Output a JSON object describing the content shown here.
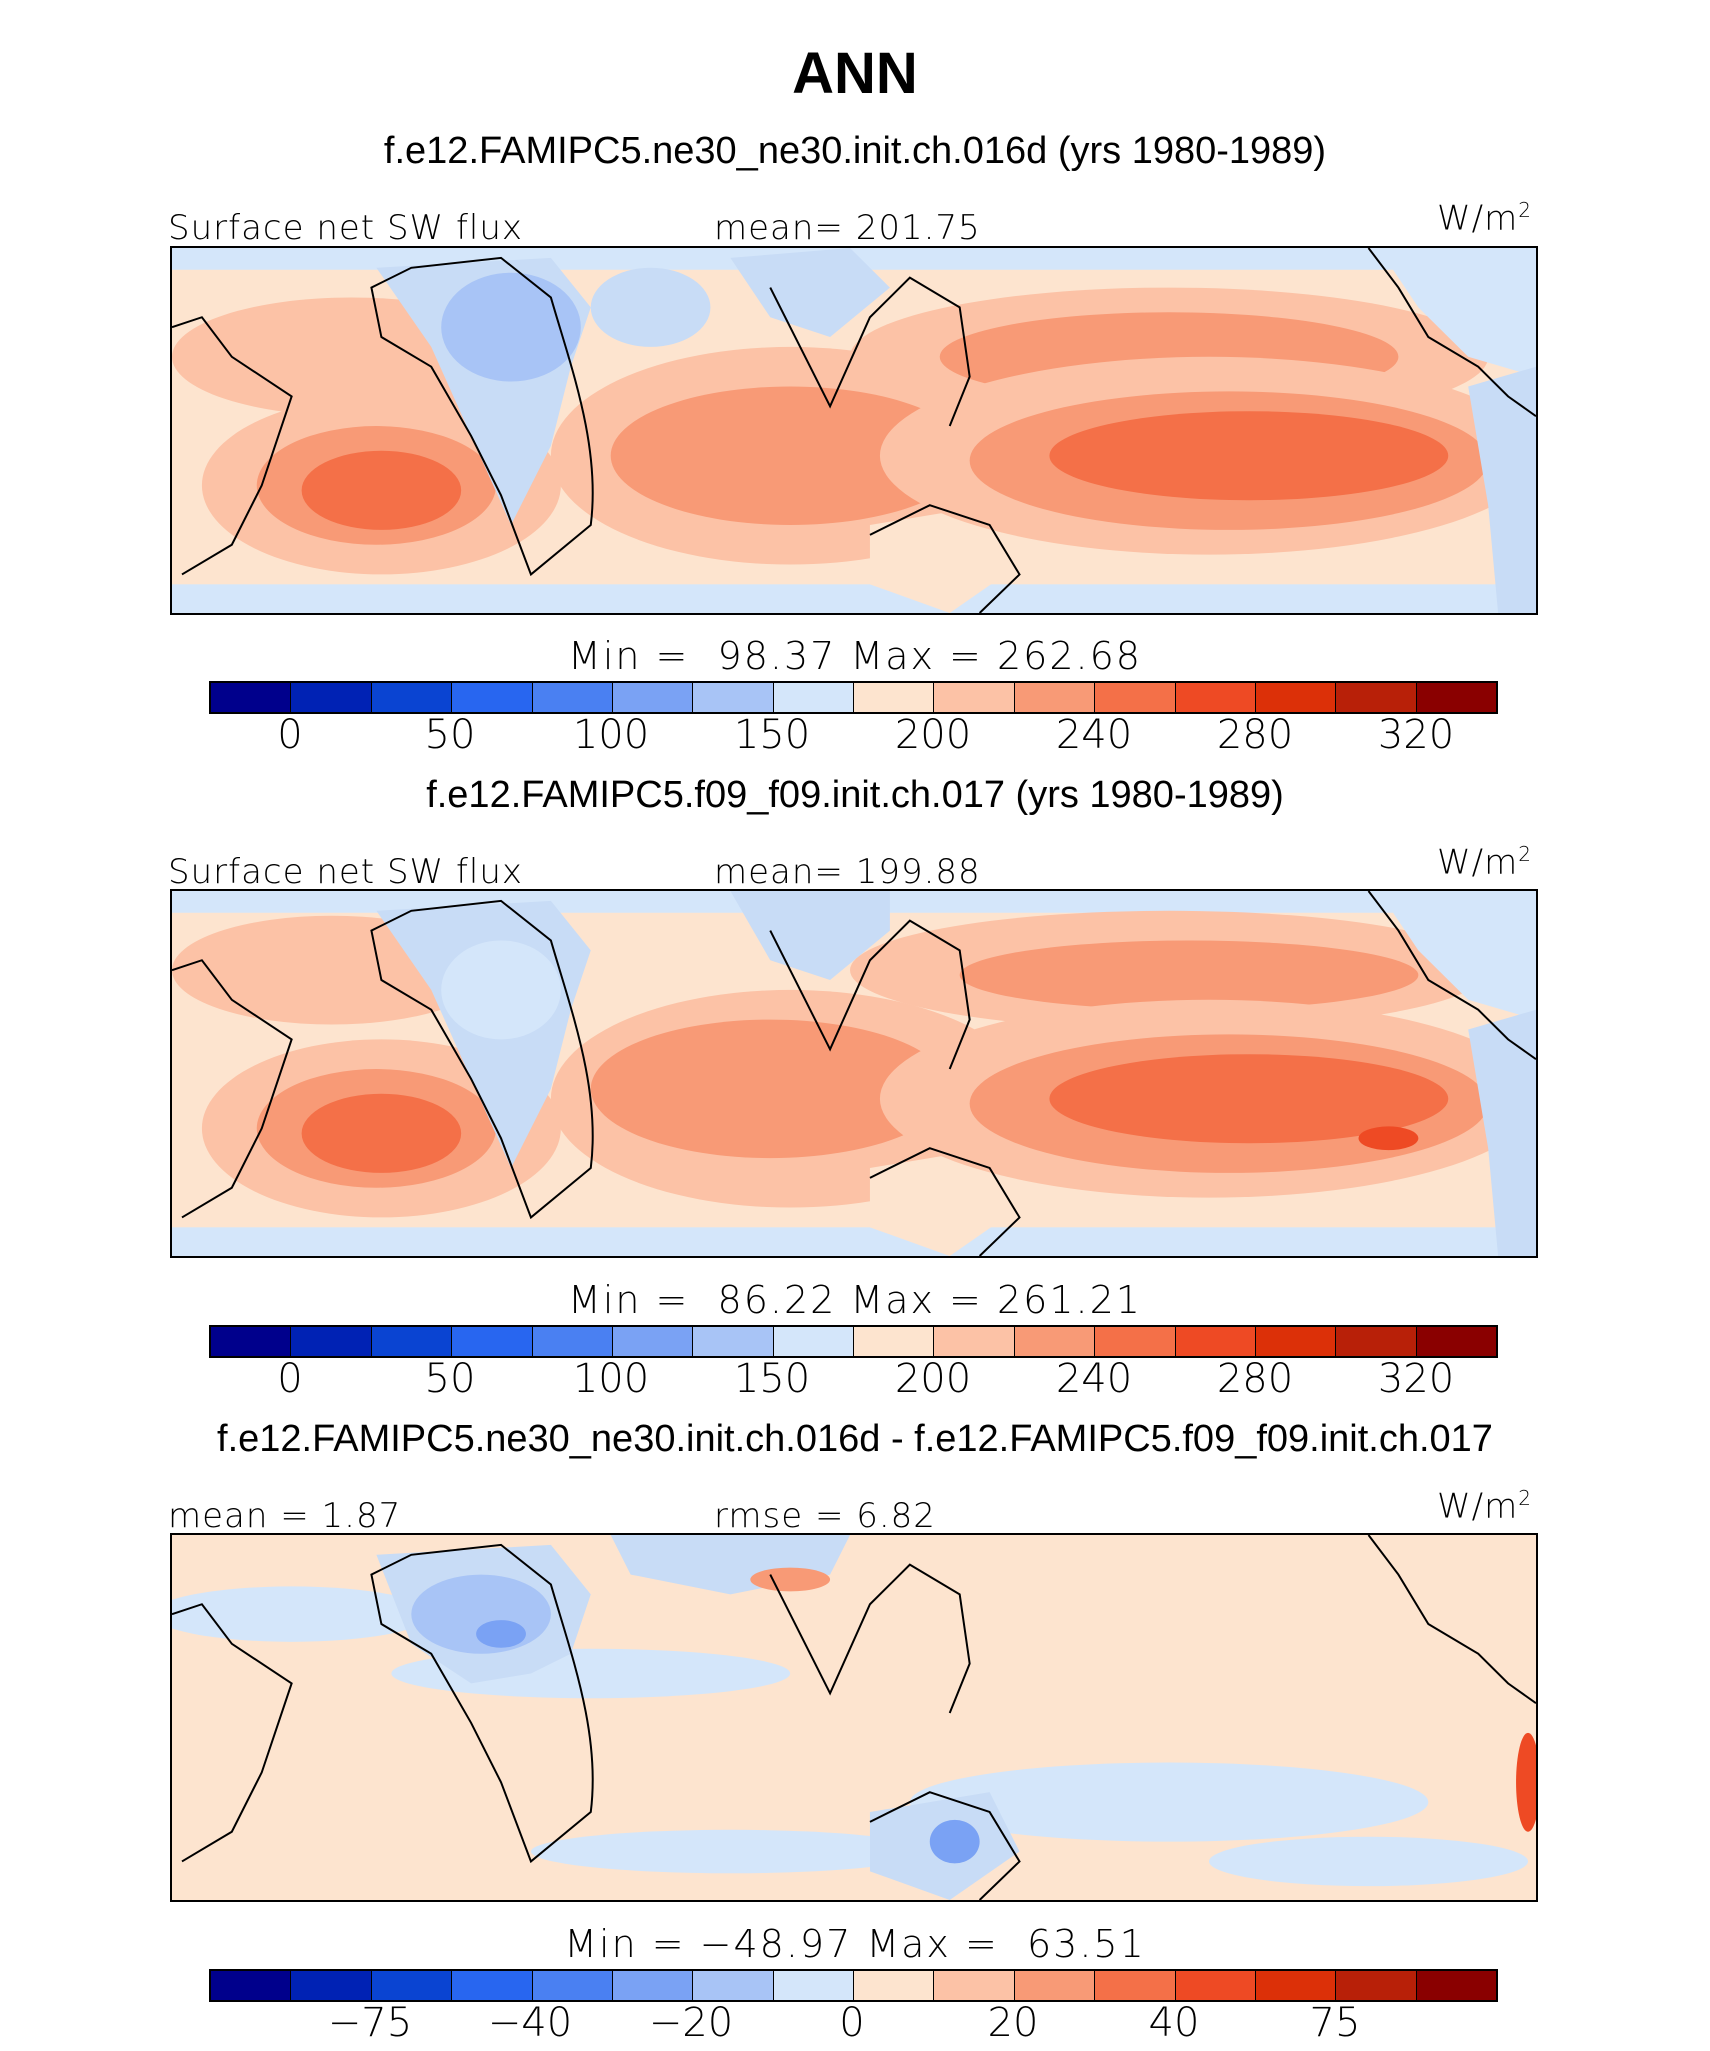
{
  "figure": {
    "title": "ANN"
  },
  "panels": [
    {
      "case_title": "f.e12.FAMIPC5.ne30_ne30.init.ch.016d (yrs 1980-1989)",
      "left_label": "Surface net SW flux",
      "center_label": "mean= 201.75",
      "units": "W/m",
      "units_sup": "2",
      "minmax": "Min =  98.37 Max = 262.68",
      "colorbar_ticks": [
        "0",
        "50",
        "100",
        "150",
        "200",
        "240",
        "280",
        "320"
      ]
    },
    {
      "case_title": "f.e12.FAMIPC5.f09_f09.init.ch.017 (yrs 1980-1989)",
      "left_label": "Surface net SW flux",
      "center_label": "mean= 199.88",
      "units": "W/m",
      "units_sup": "2",
      "minmax": "Min =  86.22 Max = 261.21",
      "colorbar_ticks": [
        "0",
        "50",
        "100",
        "150",
        "200",
        "240",
        "280",
        "320"
      ]
    },
    {
      "case_title": "f.e12.FAMIPC5.ne30_ne30.init.ch.016d - f.e12.FAMIPC5.f09_f09.init.ch.017",
      "left_label": "mean =   1.87",
      "center_label": "rmse =   6.82",
      "units": "W/m",
      "units_sup": "2",
      "minmax": "Min = −48.97 Max =  63.51",
      "colorbar_ticks": [
        "−75",
        "−40",
        "−20",
        "0",
        "20",
        "40",
        "75"
      ]
    }
  ],
  "colors": {
    "colorbar": [
      "#00008c",
      "#0022b4",
      "#0a44d2",
      "#2866f0",
      "#4a80f2",
      "#7aa2f4",
      "#a8c4f6",
      "#d4e6fa",
      "#fde4cf",
      "#fcc2a6",
      "#f89a76",
      "#f47048",
      "#ee4a24",
      "#dc3008",
      "#b82008",
      "#8a0000"
    ],
    "map_base": "#fde4cf",
    "land_blue": "#c8dcf6"
  }
}
